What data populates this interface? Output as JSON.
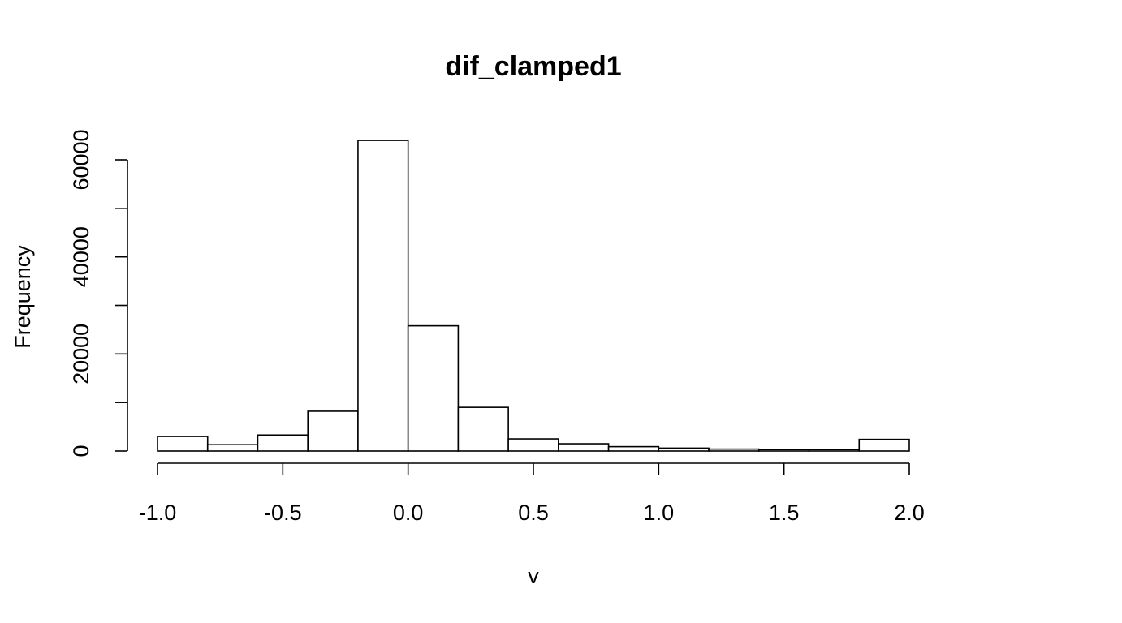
{
  "chart_data": {
    "type": "bar",
    "title": "dif_clamped1",
    "xlabel": "v",
    "ylabel": "Frequency",
    "xlim": [
      -1.0,
      2.0
    ],
    "ylim": [
      0,
      60000
    ],
    "x_ticks": [
      "-1.0",
      "-0.5",
      "0.0",
      "0.5",
      "1.0",
      "1.5",
      "2.0"
    ],
    "x_tick_values": [
      -1.0,
      -0.5,
      0.0,
      0.5,
      1.0,
      1.5,
      2.0
    ],
    "y_ticks": [
      "0",
      "20000",
      "40000",
      "60000"
    ],
    "y_tick_values": [
      0,
      20000,
      40000,
      60000
    ],
    "y_minor_tick_values": [
      10000,
      30000,
      50000
    ],
    "bin_edges": [
      -1.0,
      -0.8,
      -0.6,
      -0.4,
      -0.2,
      0.0,
      0.2,
      0.4,
      0.6,
      0.8,
      1.0,
      1.2,
      1.4,
      1.6,
      1.8,
      2.0
    ],
    "values": [
      3000,
      1300,
      3300,
      8200,
      64000,
      25800,
      9000,
      2500,
      1500,
      900,
      600,
      400,
      300,
      300,
      2400
    ],
    "grid": false,
    "legend": "none"
  }
}
